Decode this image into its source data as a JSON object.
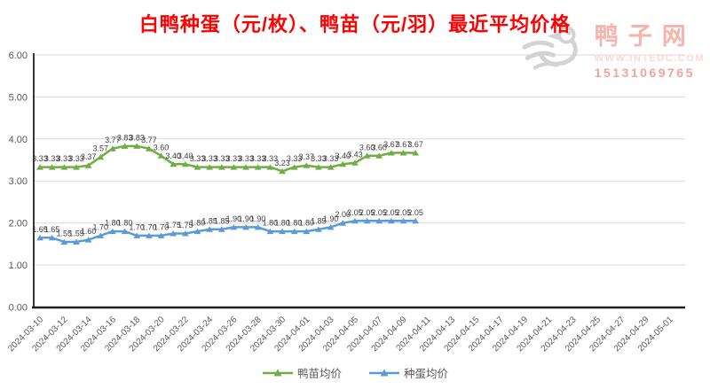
{
  "title": "白鸭种蛋（元/枚）、鸭苗（元/羽）最近平均价格",
  "watermark": {
    "brand": "鸭子网",
    "site": "WWW.INTEDC.COM",
    "phone": "15131069765",
    "brand_color": "#f5b3ab",
    "site_color": "#fbd9d4",
    "phone_color": "#f2a49c",
    "logo_color": "#d3d3d3"
  },
  "colors": {
    "title": "#ff0000",
    "duckling_series": "#70AD47",
    "egg_series": "#5B9BD5",
    "gridline": "#d9d9d9",
    "axis_line": "#1f1f1f",
    "tick_text": "#595959",
    "data_label_text": "#3f3f3f"
  },
  "chart_data": {
    "type": "line",
    "title": "白鸭种蛋（元/枚）、鸭苗（元/羽）最近平均价格",
    "x": [
      "2024-03-10",
      "2024-03-11",
      "2024-03-12",
      "2024-03-13",
      "2024-03-14",
      "2024-03-15",
      "2024-03-16",
      "2024-03-17",
      "2024-03-18",
      "2024-03-19",
      "2024-03-20",
      "2024-03-21",
      "2024-03-22",
      "2024-03-23",
      "2024-03-24",
      "2024-03-25",
      "2024-03-26",
      "2024-03-27",
      "2024-03-28",
      "2024-03-29",
      "2024-03-30",
      "2024-03-31",
      "2024-04-01",
      "2024-04-02",
      "2024-04-03",
      "2024-04-04",
      "2024-04-05",
      "2024-04-06",
      "2024-04-07",
      "2024-04-08",
      "2024-04-09",
      "2024-04-10"
    ],
    "series": [
      {
        "name": "鸭苗均价",
        "color": "#70AD47",
        "values": [
          3.33,
          3.33,
          3.33,
          3.33,
          3.37,
          3.57,
          3.77,
          3.83,
          3.83,
          3.77,
          3.6,
          3.4,
          3.4,
          3.33,
          3.33,
          3.33,
          3.33,
          3.33,
          3.33,
          3.33,
          3.23,
          3.33,
          3.37,
          3.33,
          3.33,
          3.4,
          3.43,
          3.6,
          3.6,
          3.67,
          3.67,
          3.67
        ]
      },
      {
        "name": "种蛋均价",
        "color": "#5B9BD5",
        "values": [
          1.65,
          1.65,
          1.55,
          1.55,
          1.6,
          1.7,
          1.8,
          1.8,
          1.7,
          1.7,
          1.7,
          1.75,
          1.75,
          1.8,
          1.85,
          1.85,
          1.9,
          1.9,
          1.9,
          1.8,
          1.8,
          1.8,
          1.8,
          1.85,
          1.9,
          2.0,
          2.05,
          2.05,
          2.05,
          2.05,
          2.05,
          2.05
        ]
      }
    ],
    "x_tick_labels": [
      "2024-03-10",
      "2024-03-12",
      "2024-03-14",
      "2024-03-16",
      "2024-03-18",
      "2024-03-20",
      "2024-03-22",
      "2024-03-24",
      "2024-03-26",
      "2024-03-28",
      "2024-03-30",
      "2024-04-01",
      "2024-04-03",
      "2024-04-05",
      "2024-04-07",
      "2024-04-09",
      "2024-04-11",
      "2024-04-13",
      "2024-04-15",
      "2024-04-17",
      "2024-04-19",
      "2024-04-21",
      "2024-04-23",
      "2024-04-25",
      "2024-04-27",
      "2024-04-29",
      "2024-05-01"
    ],
    "y_ticks": [
      "6.00",
      "5.00",
      "4.00",
      "3.00",
      "2.00",
      "1.00",
      "0.00"
    ],
    "ylim": [
      0,
      6
    ],
    "grid": "horizontal",
    "marker": "triangle",
    "data_labels": true,
    "legend_position": "bottom"
  },
  "legend": {
    "items": [
      {
        "label": "鸭苗均价",
        "color": "#70AD47"
      },
      {
        "label": "种蛋均价",
        "color": "#5B9BD5"
      }
    ]
  }
}
